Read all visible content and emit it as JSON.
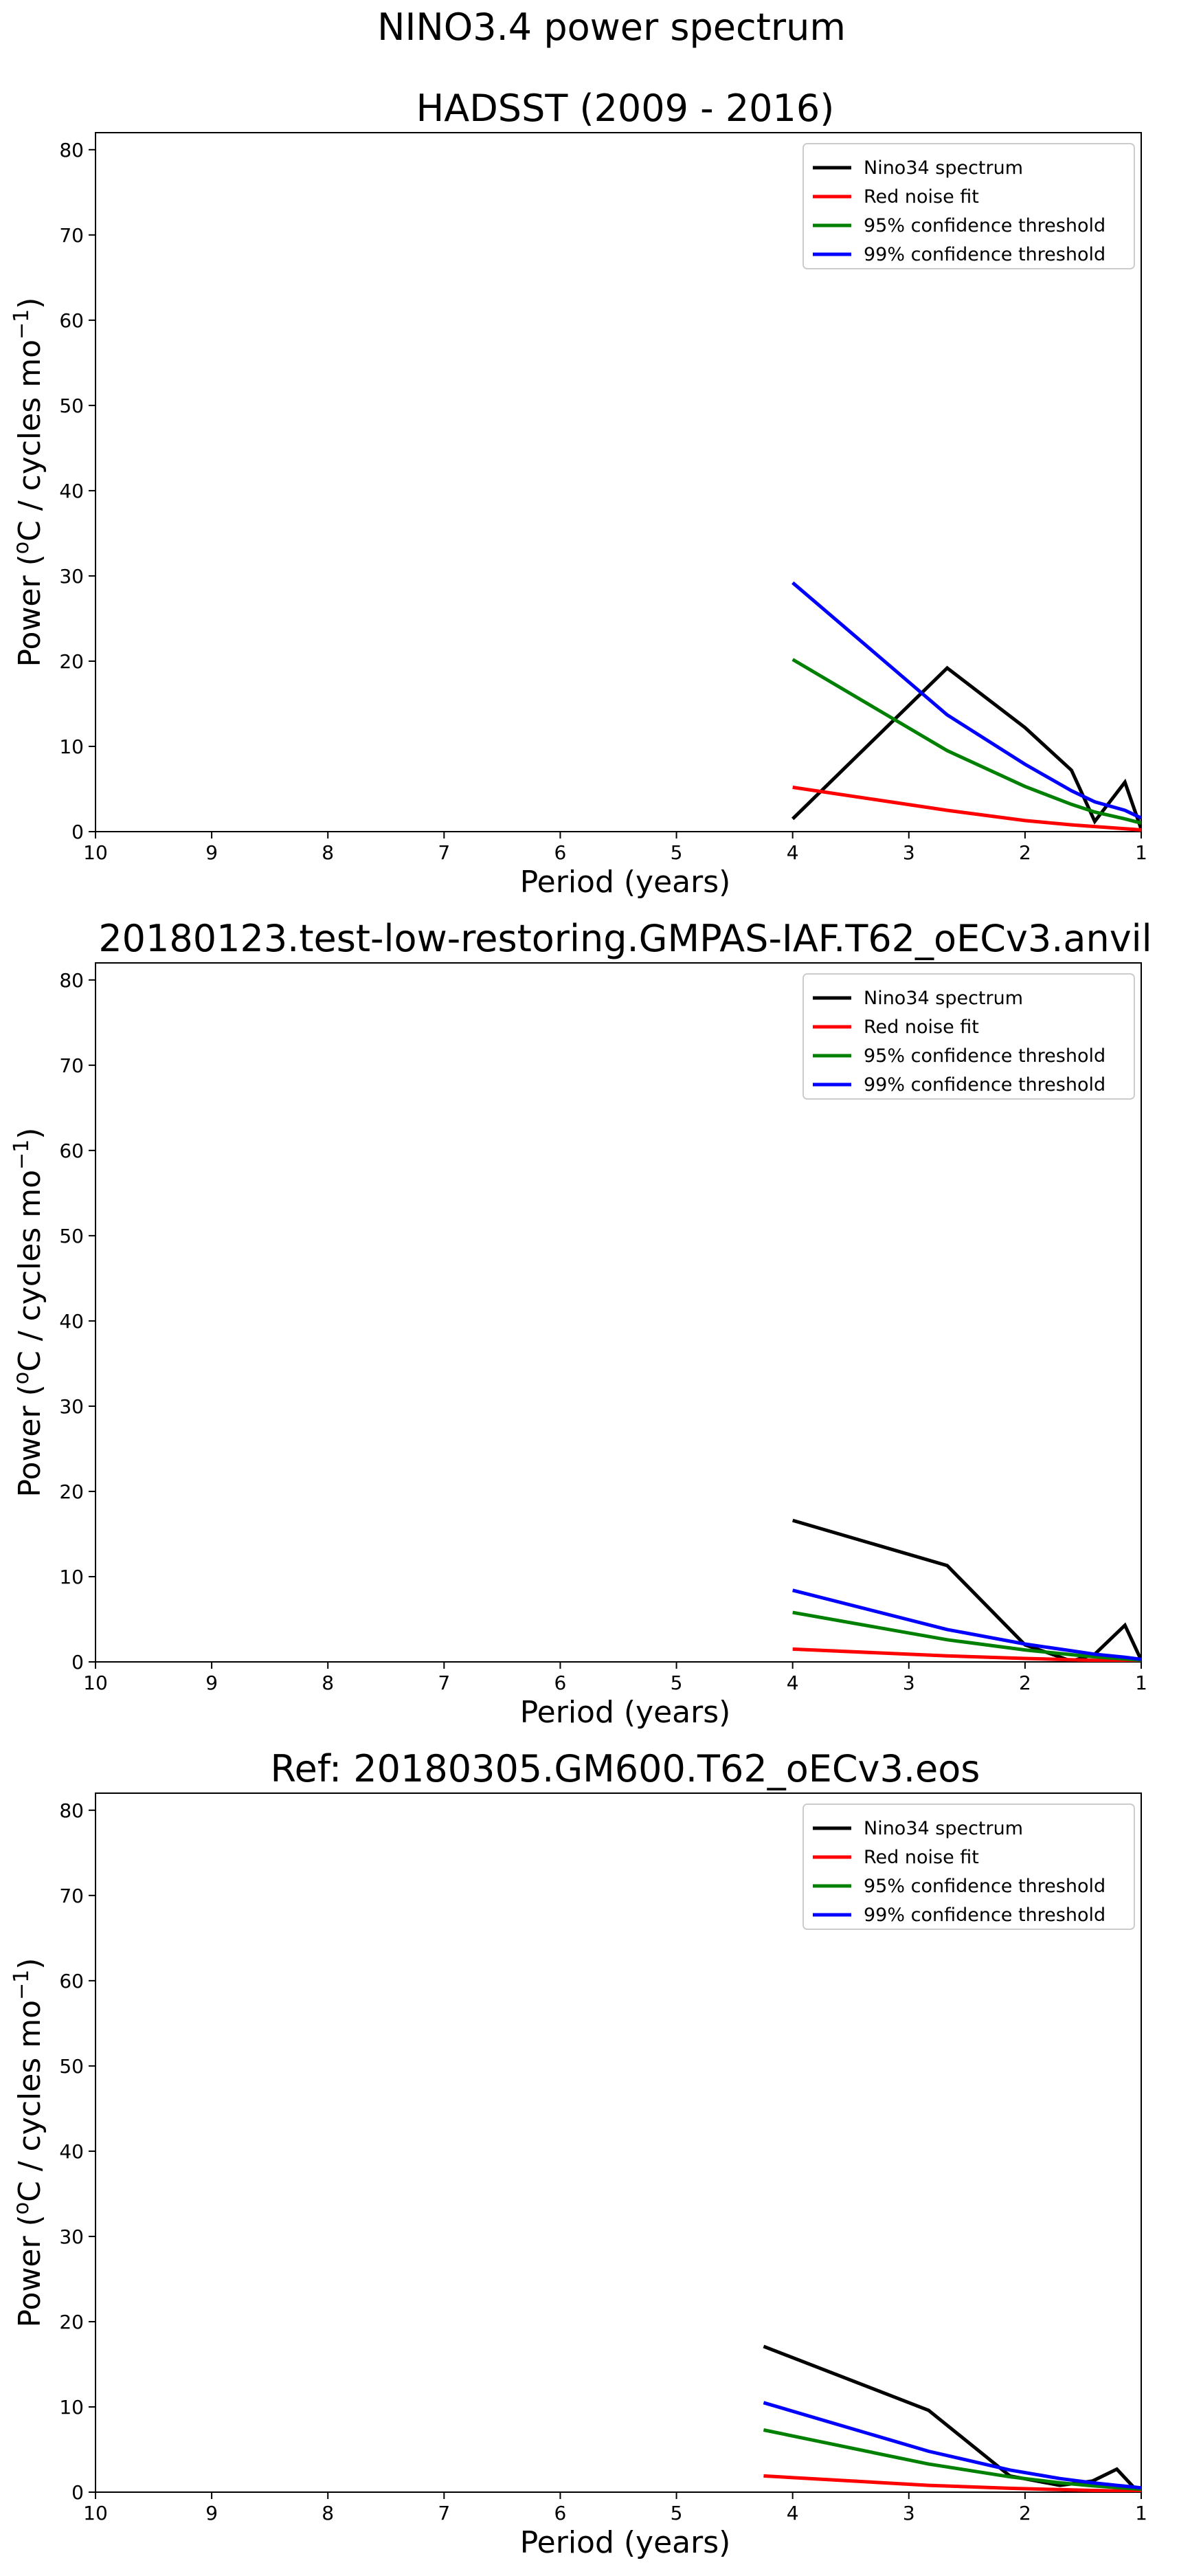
{
  "figure": {
    "suptitle": "NINO3.4 power spectrum"
  },
  "chart_data": [
    {
      "type": "line",
      "title": "HADSST (2009 - 2016)",
      "xlabel": "Period (years)",
      "ylabel_main": "Power (",
      "ylabel_sup1": "o",
      "ylabel_mid": "C / cycles mo",
      "ylabel_sup2": "−1",
      "ylabel_end": ")",
      "xlim": [
        10,
        1
      ],
      "ylim": [
        0,
        82
      ],
      "xticks": [
        10,
        9,
        8,
        7,
        6,
        5,
        4,
        3,
        2,
        1
      ],
      "yticks": [
        0,
        10,
        20,
        30,
        40,
        50,
        60,
        70,
        80
      ],
      "legend": "top-right",
      "series": [
        {
          "name": "Nino34 spectrum",
          "color": "#000000",
          "x": [
            4.0,
            2.67,
            2.0,
            1.6,
            1.4,
            1.14,
            1.0
          ],
          "y": [
            1.5,
            19.2,
            12.2,
            7.2,
            1.2,
            5.8,
            0.3
          ]
        },
        {
          "name": "Red noise fit",
          "color": "#ff0000",
          "x": [
            4.0,
            2.67,
            2.0,
            1.6,
            1.4,
            1.14,
            1.0
          ],
          "y": [
            5.2,
            2.5,
            1.3,
            0.8,
            0.6,
            0.35,
            0.2
          ]
        },
        {
          "name": "95% confidence threshold",
          "color": "#008000",
          "x": [
            4.0,
            2.67,
            2.0,
            1.6,
            1.4,
            1.14,
            1.0
          ],
          "y": [
            20.2,
            9.5,
            5.3,
            3.2,
            2.3,
            1.5,
            1.0
          ]
        },
        {
          "name": "99% confidence threshold",
          "color": "#0000ff",
          "x": [
            4.0,
            2.67,
            2.0,
            1.6,
            1.4,
            1.14,
            1.0
          ],
          "y": [
            29.2,
            13.7,
            7.9,
            4.8,
            3.5,
            2.5,
            1.6
          ]
        }
      ]
    },
    {
      "type": "line",
      "title": "20180123.test-low-restoring.GMPAS-IAF.T62_oECv3.anvil",
      "xlabel": "Period (years)",
      "ylabel_main": "Power (",
      "ylabel_sup1": "o",
      "ylabel_mid": "C / cycles mo",
      "ylabel_sup2": "−1",
      "ylabel_end": ")",
      "xlim": [
        10,
        1
      ],
      "ylim": [
        0,
        82
      ],
      "xticks": [
        10,
        9,
        8,
        7,
        6,
        5,
        4,
        3,
        2,
        1
      ],
      "yticks": [
        0,
        10,
        20,
        30,
        40,
        50,
        60,
        70,
        80
      ],
      "legend": "top-right",
      "series": [
        {
          "name": "Nino34 spectrum",
          "color": "#000000",
          "x": [
            4.0,
            2.67,
            2.0,
            1.6,
            1.4,
            1.14,
            1.0
          ],
          "y": [
            16.6,
            11.3,
            2.0,
            0.1,
            0.9,
            4.3,
            0.2
          ]
        },
        {
          "name": "Red noise fit",
          "color": "#ff0000",
          "x": [
            4.0,
            2.67,
            2.0,
            1.6,
            1.4,
            1.14,
            1.0
          ],
          "y": [
            1.5,
            0.7,
            0.4,
            0.25,
            0.18,
            0.1,
            0.06
          ]
        },
        {
          "name": "95% confidence threshold",
          "color": "#008000",
          "x": [
            4.0,
            2.67,
            2.0,
            1.6,
            1.4,
            1.14,
            1.0
          ],
          "y": [
            5.8,
            2.6,
            1.4,
            0.85,
            0.6,
            0.35,
            0.2
          ]
        },
        {
          "name": "99% confidence threshold",
          "color": "#0000ff",
          "x": [
            4.0,
            2.67,
            2.0,
            1.6,
            1.4,
            1.14,
            1.0
          ],
          "y": [
            8.4,
            3.8,
            2.1,
            1.3,
            0.9,
            0.55,
            0.3
          ]
        }
      ]
    },
    {
      "type": "line",
      "title": "Ref: 20180305.GM600.T62_oECv3.eos",
      "xlabel": "Period (years)",
      "ylabel_main": "Power (",
      "ylabel_sup1": "o",
      "ylabel_mid": "C / cycles mo",
      "ylabel_sup2": "−1",
      "ylabel_end": ")",
      "xlim": [
        10,
        1
      ],
      "ylim": [
        0,
        82
      ],
      "xticks": [
        10,
        9,
        8,
        7,
        6,
        5,
        4,
        3,
        2,
        1
      ],
      "yticks": [
        0,
        10,
        20,
        30,
        40,
        50,
        60,
        70,
        80
      ],
      "legend": "top-right",
      "series": [
        {
          "name": "Nino34 spectrum",
          "color": "#000000",
          "x": [
            4.25,
            2.83,
            2.13,
            1.7,
            1.42,
            1.21,
            1.06,
            1.0
          ],
          "y": [
            17.1,
            9.6,
            1.9,
            0.8,
            1.3,
            2.7,
            0.5,
            0.2
          ]
        },
        {
          "name": "Red noise fit",
          "color": "#ff0000",
          "x": [
            4.25,
            2.83,
            2.13,
            1.7,
            1.42,
            1.21,
            1.06,
            1.0
          ],
          "y": [
            1.9,
            0.8,
            0.45,
            0.3,
            0.2,
            0.15,
            0.1,
            0.08
          ]
        },
        {
          "name": "95% confidence threshold",
          "color": "#008000",
          "x": [
            4.25,
            2.83,
            2.13,
            1.7,
            1.42,
            1.21,
            1.06,
            1.0
          ],
          "y": [
            7.3,
            3.3,
            1.8,
            1.1,
            0.75,
            0.55,
            0.4,
            0.35
          ]
        },
        {
          "name": "99% confidence threshold",
          "color": "#0000ff",
          "x": [
            4.25,
            2.83,
            2.13,
            1.7,
            1.42,
            1.21,
            1.06,
            1.0
          ],
          "y": [
            10.5,
            4.8,
            2.6,
            1.6,
            1.1,
            0.8,
            0.6,
            0.5
          ]
        }
      ]
    }
  ]
}
